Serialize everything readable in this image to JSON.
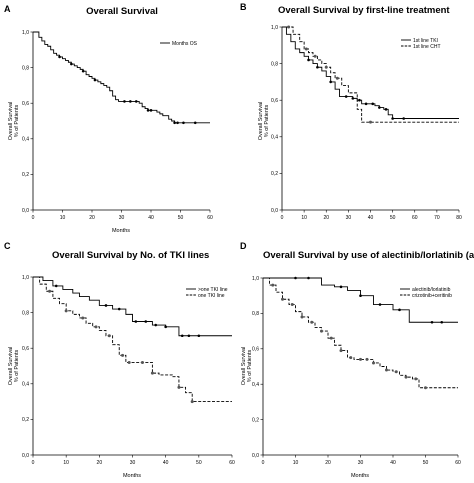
{
  "chart_data": [
    {
      "panel": "A",
      "type": "line",
      "title": "Overall Survival",
      "xlabel": "Months",
      "ylabel": [
        "Overall Survival",
        "% of Patients"
      ],
      "xlim": [
        0,
        60
      ],
      "ylim": [
        0,
        1
      ],
      "xticks": [
        "0",
        "10",
        "20",
        "30",
        "40",
        "50",
        "60"
      ],
      "yticks": [
        "0,0",
        "0,2",
        "0,4",
        "0,6",
        "0,8",
        "1,0"
      ],
      "legend_position": "top-right",
      "series": [
        {
          "name": "Months OS",
          "style": "solid",
          "x": [
            0,
            2,
            3,
            4,
            5,
            6,
            7,
            8,
            9,
            10,
            11,
            12,
            13,
            14,
            15,
            16,
            17,
            18,
            19,
            20,
            21,
            22,
            23,
            24,
            25,
            26,
            27,
            28,
            29,
            31,
            33,
            35,
            36,
            37,
            38,
            39,
            40,
            42,
            43,
            44,
            46,
            47,
            48,
            49,
            51,
            55,
            60
          ],
          "y": [
            1.0,
            0.97,
            0.95,
            0.93,
            0.92,
            0.9,
            0.88,
            0.87,
            0.86,
            0.85,
            0.84,
            0.83,
            0.82,
            0.81,
            0.8,
            0.79,
            0.78,
            0.76,
            0.75,
            0.74,
            0.73,
            0.72,
            0.71,
            0.7,
            0.69,
            0.67,
            0.64,
            0.62,
            0.61,
            0.61,
            0.61,
            0.61,
            0.6,
            0.58,
            0.57,
            0.56,
            0.56,
            0.55,
            0.54,
            0.53,
            0.51,
            0.5,
            0.49,
            0.49,
            0.49,
            0.49,
            0.49
          ],
          "censored_x": [
            9,
            13,
            17,
            21,
            31,
            33,
            35,
            39,
            40,
            48,
            49,
            51,
            55
          ]
        }
      ]
    },
    {
      "panel": "B",
      "type": "line",
      "title": "Overall Survival by first-line treatment",
      "xlabel": "",
      "ylabel": [
        "Overall Survival",
        "% of Patients"
      ],
      "xlim": [
        0,
        80
      ],
      "ylim": [
        0,
        1
      ],
      "xticks": [
        "0",
        "10",
        "20",
        "30",
        "40",
        "50",
        "60",
        "70",
        "80"
      ],
      "yticks": [
        "0,0",
        "0,2",
        "0,4",
        "0,6",
        "0,8",
        "1,0"
      ],
      "legend_position": "top-right",
      "series": [
        {
          "name": "1st line TKI",
          "style": "solid",
          "x": [
            0,
            2,
            4,
            6,
            8,
            10,
            12,
            14,
            16,
            18,
            20,
            22,
            24,
            26,
            28,
            30,
            32,
            34,
            36,
            38,
            40,
            42,
            44,
            46,
            48,
            50,
            52,
            55,
            80
          ],
          "y": [
            1.0,
            0.96,
            0.92,
            0.88,
            0.86,
            0.84,
            0.82,
            0.8,
            0.78,
            0.76,
            0.73,
            0.7,
            0.66,
            0.62,
            0.62,
            0.62,
            0.61,
            0.6,
            0.58,
            0.58,
            0.58,
            0.57,
            0.56,
            0.55,
            0.52,
            0.5,
            0.5,
            0.5,
            0.5
          ],
          "censored_x": [
            12,
            16,
            22,
            29,
            32,
            35,
            38,
            41,
            44,
            47,
            50,
            55
          ]
        },
        {
          "name": "1st line CHT",
          "style": "dashed",
          "x": [
            0,
            3,
            5,
            8,
            10,
            12,
            14,
            16,
            18,
            20,
            22,
            24,
            27,
            30,
            34,
            36,
            38,
            40,
            48,
            55,
            80
          ],
          "y": [
            1.0,
            1.0,
            0.96,
            0.92,
            0.88,
            0.86,
            0.84,
            0.82,
            0.8,
            0.78,
            0.75,
            0.72,
            0.68,
            0.64,
            0.55,
            0.48,
            0.48,
            0.48,
            0.48,
            0.48,
            0.48
          ],
          "censored_x": [
            3,
            11,
            15,
            20,
            25,
            40
          ]
        }
      ]
    },
    {
      "panel": "C",
      "type": "line",
      "title": "Overall Survival by No. of TKI lines",
      "xlabel": "Months",
      "ylabel": [
        "Overall Survival",
        "% of Patients"
      ],
      "xlim": [
        0,
        60
      ],
      "ylim": [
        0,
        1
      ],
      "xticks": [
        "0",
        "10",
        "20",
        "30",
        "40",
        "50",
        "60"
      ],
      "yticks": [
        "0,0",
        "0,2",
        "0,4",
        "0,6",
        "0,8",
        "1,0"
      ],
      "legend_position": "top-right",
      "series": [
        {
          "name": ">one TKI line",
          "style": "solid",
          "x": [
            0,
            3,
            6,
            9,
            12,
            14,
            17,
            20,
            24,
            28,
            30,
            33,
            36,
            40,
            44,
            50,
            60
          ],
          "y": [
            1.0,
            0.98,
            0.95,
            0.93,
            0.91,
            0.89,
            0.87,
            0.84,
            0.82,
            0.79,
            0.75,
            0.75,
            0.73,
            0.72,
            0.67,
            0.67,
            0.67
          ],
          "censored_x": [
            7,
            22,
            26,
            31,
            34,
            37,
            40,
            45,
            47,
            50
          ]
        },
        {
          "name": "one TKI line",
          "style": "dashed",
          "x": [
            0,
            2,
            4,
            6,
            8,
            10,
            12,
            14,
            16,
            18,
            20,
            22,
            24,
            26,
            28,
            30,
            32,
            34,
            36,
            38,
            40,
            42,
            44,
            46,
            48,
            50,
            55,
            60
          ],
          "y": [
            1.0,
            0.96,
            0.92,
            0.88,
            0.85,
            0.81,
            0.79,
            0.77,
            0.74,
            0.72,
            0.7,
            0.67,
            0.62,
            0.56,
            0.52,
            0.52,
            0.52,
            0.52,
            0.46,
            0.45,
            0.45,
            0.44,
            0.38,
            0.35,
            0.3,
            0.3,
            0.3,
            0.3
          ],
          "censored_x": [
            5,
            10,
            15,
            19,
            23,
            27,
            29,
            33,
            36,
            44,
            48
          ]
        }
      ]
    },
    {
      "panel": "D",
      "type": "line",
      "title": "Overall Survival by use of alectinib/lorlatinib (any line)",
      "xlabel": "Months",
      "ylabel": [
        "Overall Survival",
        "% of Patients"
      ],
      "xlim": [
        0,
        60
      ],
      "ylim": [
        0,
        1
      ],
      "xticks": [
        "0",
        "10",
        "20",
        "30",
        "40",
        "50",
        "60"
      ],
      "yticks": [
        "0,0",
        "0,2",
        "0,4",
        "0,6",
        "0,8",
        "1,0"
      ],
      "legend_position": "top-right",
      "series": [
        {
          "name": "alectinib/lorlatinib",
          "style": "solid",
          "x": [
            0,
            5,
            10,
            14,
            18,
            22,
            26,
            30,
            34,
            36,
            40,
            42,
            45,
            47,
            50,
            55,
            60
          ],
          "y": [
            1.0,
            1.0,
            1.0,
            1.0,
            0.96,
            0.95,
            0.93,
            0.9,
            0.85,
            0.85,
            0.82,
            0.82,
            0.75,
            0.75,
            0.75,
            0.75,
            0.75
          ],
          "censored_x": [
            10,
            14,
            24,
            30,
            36,
            42,
            52,
            55
          ]
        },
        {
          "name": "crizotinib+ceritinib",
          "style": "dashed",
          "x": [
            0,
            2,
            4,
            6,
            8,
            10,
            12,
            14,
            16,
            18,
            20,
            22,
            24,
            26,
            28,
            30,
            32,
            34,
            36,
            38,
            40,
            42,
            44,
            46,
            48,
            50,
            55,
            60
          ],
          "y": [
            1.0,
            0.96,
            0.92,
            0.88,
            0.85,
            0.81,
            0.78,
            0.75,
            0.72,
            0.7,
            0.66,
            0.62,
            0.59,
            0.55,
            0.54,
            0.54,
            0.54,
            0.52,
            0.5,
            0.48,
            0.47,
            0.45,
            0.44,
            0.43,
            0.38,
            0.38,
            0.38,
            0.38
          ],
          "censored_x": [
            3,
            6,
            9,
            12,
            15,
            18,
            21,
            24,
            27,
            30,
            32,
            34,
            38,
            41,
            44,
            47,
            50
          ]
        }
      ]
    }
  ]
}
